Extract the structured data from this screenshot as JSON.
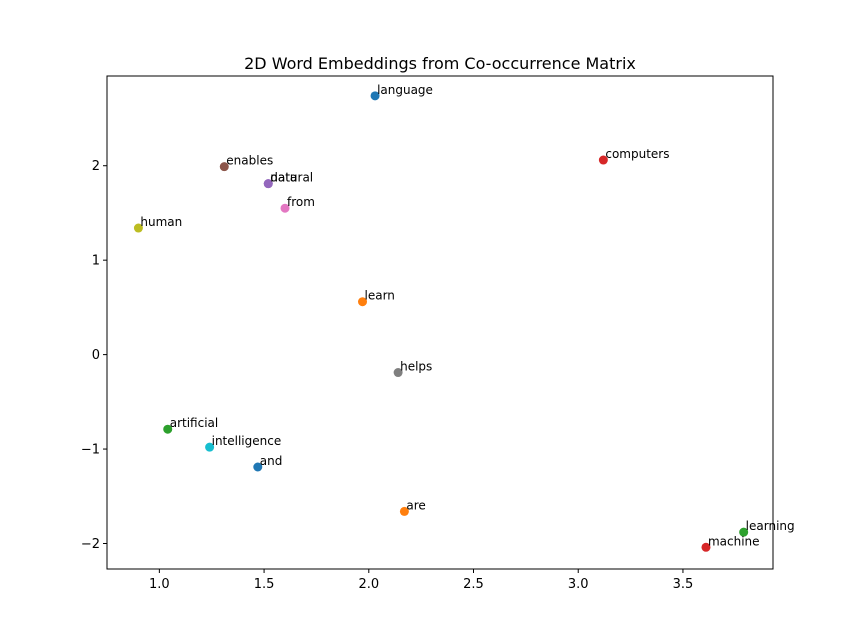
{
  "chart_data": {
    "type": "scatter",
    "title": "2D Word Embeddings from Co-occurrence Matrix",
    "xlabel": "",
    "ylabel": "",
    "xlim": [
      0.75,
      3.93
    ],
    "ylim": [
      -2.27,
      2.95
    ],
    "xticks": [
      1.0,
      1.5,
      2.0,
      2.5,
      3.0,
      3.5
    ],
    "xtick_labels": [
      "1.0",
      "1.5",
      "2.0",
      "2.5",
      "3.0",
      "3.5"
    ],
    "yticks": [
      -2,
      -1,
      0,
      1,
      2
    ],
    "ytick_labels": [
      "−2",
      "−1",
      "0",
      "1",
      "2"
    ],
    "grid": false,
    "points": [
      {
        "label": "language",
        "x": 2.03,
        "y": 2.74,
        "color": "#1f77b4"
      },
      {
        "label": "computers",
        "x": 3.12,
        "y": 2.06,
        "color": "#d62728"
      },
      {
        "label": "enables",
        "x": 1.31,
        "y": 1.99,
        "color": "#8c564b"
      },
      {
        "label": "data",
        "x": 1.52,
        "y": 1.81,
        "color": "#9467bd"
      },
      {
        "label": "natural",
        "x": 1.52,
        "y": 1.81,
        "color": "#9467bd"
      },
      {
        "label": "from",
        "x": 1.6,
        "y": 1.55,
        "color": "#e377c2"
      },
      {
        "label": "human",
        "x": 0.9,
        "y": 1.34,
        "color": "#bcbd22"
      },
      {
        "label": "learn",
        "x": 1.97,
        "y": 0.56,
        "color": "#ff7f0e"
      },
      {
        "label": "helps",
        "x": 2.14,
        "y": -0.19,
        "color": "#7f7f7f"
      },
      {
        "label": "artificial",
        "x": 1.04,
        "y": -0.79,
        "color": "#2ca02c"
      },
      {
        "label": "intelligence",
        "x": 1.24,
        "y": -0.98,
        "color": "#17becf"
      },
      {
        "label": "and",
        "x": 1.47,
        "y": -1.19,
        "color": "#1f77b4"
      },
      {
        "label": "are",
        "x": 2.17,
        "y": -1.66,
        "color": "#ff7f0e"
      },
      {
        "label": "learning",
        "x": 3.79,
        "y": -1.88,
        "color": "#2ca02c"
      },
      {
        "label": "machine",
        "x": 3.61,
        "y": -2.04,
        "color": "#d62728"
      }
    ]
  }
}
